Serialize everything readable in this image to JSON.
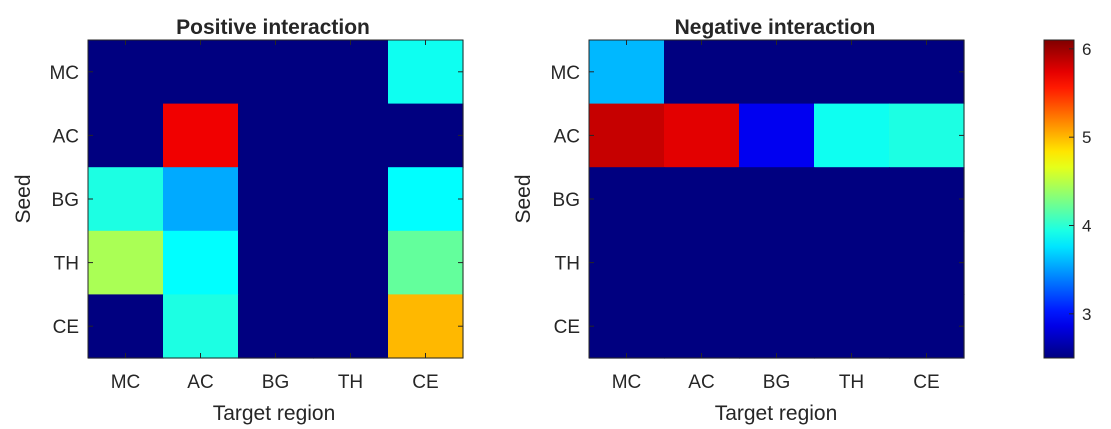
{
  "colors": {
    "colormap": "jet",
    "axis_color": "#262626",
    "background": "#ffffff"
  },
  "chart_data": [
    {
      "type": "heatmap",
      "title": "Positive interaction",
      "xlabel": "Target region",
      "ylabel": "Seed",
      "x_categories": [
        "MC",
        "AC",
        "BG",
        "TH",
        "CE"
      ],
      "y_categories": [
        "MC",
        "AC",
        "BG",
        "TH",
        "CE"
      ],
      "values": [
        [
          2.5,
          2.5,
          2.5,
          2.5,
          3.9
        ],
        [
          2.5,
          5.7,
          2.5,
          2.5,
          2.5
        ],
        [
          3.95,
          3.55,
          2.5,
          2.5,
          3.85
        ],
        [
          4.45,
          3.85,
          2.5,
          2.5,
          4.2
        ],
        [
          2.5,
          3.95,
          2.5,
          2.5,
          5.0
        ]
      ],
      "clim": [
        2.5,
        6.1
      ],
      "colormap": "jet"
    },
    {
      "type": "heatmap",
      "title": "Negative interaction",
      "xlabel": "Target region",
      "ylabel": "Seed",
      "x_categories": [
        "MC",
        "AC",
        "BG",
        "TH",
        "CE"
      ],
      "y_categories": [
        "MC",
        "AC",
        "BG",
        "TH",
        "CE"
      ],
      "values": [
        [
          3.6,
          2.5,
          2.5,
          2.5,
          2.5
        ],
        [
          5.85,
          5.75,
          2.9,
          3.9,
          3.95
        ],
        [
          2.5,
          2.5,
          2.5,
          2.5,
          2.5
        ],
        [
          2.5,
          2.5,
          2.5,
          2.5,
          2.5
        ],
        [
          2.5,
          2.5,
          2.5,
          2.5,
          2.5
        ]
      ],
      "clim": [
        2.5,
        6.1
      ],
      "colormap": "jet"
    }
  ],
  "colorbar": {
    "ticks": [
      3,
      4,
      5,
      6
    ],
    "tick_labels": [
      "3",
      "4",
      "5",
      "6"
    ],
    "range": [
      2.5,
      6.1
    ]
  }
}
